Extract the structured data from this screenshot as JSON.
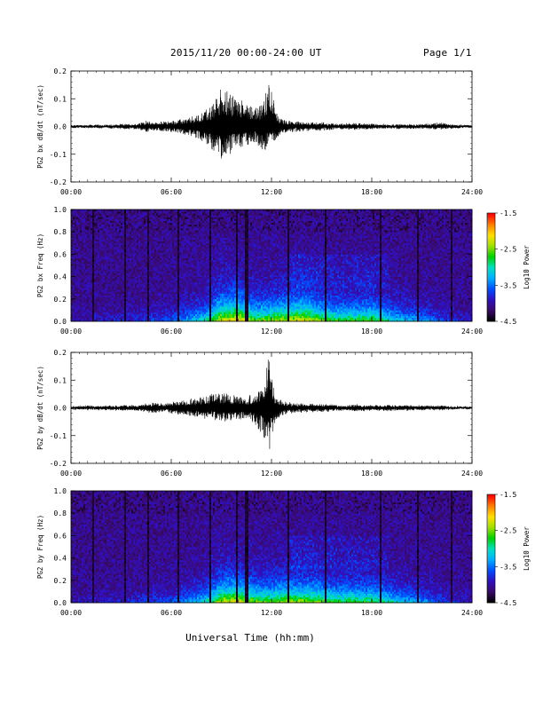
{
  "header": {
    "title": "2015/11/20  00:00-24:00 UT",
    "page": "Page 1/1"
  },
  "xaxis": {
    "ticks": [
      "00:00",
      "06:00",
      "12:00",
      "18:00",
      "24:00"
    ],
    "tick_hours": [
      0,
      6,
      12,
      18,
      24
    ],
    "range_hours": [
      0,
      24
    ],
    "label": "Universal Time (hh:mm)"
  },
  "colorbar": {
    "label": "Log10 Power",
    "ticks": [
      "-1.5",
      "-2.5",
      "-3.5",
      "-4.5"
    ],
    "tick_values": [
      -1.5,
      -2.5,
      -3.5,
      -4.5
    ],
    "range": [
      -4.5,
      -1.5
    ],
    "colors": [
      "#000000",
      "#3a0a6a",
      "#3010c0",
      "#0050ff",
      "#00b0ff",
      "#00e0c0",
      "#00d000",
      "#a0e000",
      "#ffe000",
      "#ff8000",
      "#ff0000"
    ]
  },
  "chart_data": [
    {
      "type": "line",
      "ylabel": "PG2 bx dB/dt (nT/sec)",
      "ylim": [
        -0.2,
        0.2
      ],
      "yticks": [
        "0.2",
        "0.1",
        "0.0",
        "-0.1",
        "-0.2"
      ],
      "ytick_values": [
        0.2,
        0.1,
        0.0,
        -0.1,
        -0.2
      ],
      "xlim": [
        0,
        24
      ],
      "series": [
        {
          "x_hours": [
            0,
            1,
            2,
            3,
            4,
            4.5,
            5,
            6,
            7,
            7.5,
            8,
            8.5,
            9,
            9.5,
            10,
            10.5,
            11,
            11.5,
            11.9,
            12.2,
            12.5,
            13,
            14,
            15,
            16,
            17,
            18,
            19,
            20,
            21,
            22,
            23,
            24
          ],
          "envelope_pos": [
            0.005,
            0.006,
            0.006,
            0.008,
            0.01,
            0.02,
            0.015,
            0.02,
            0.03,
            0.04,
            0.06,
            0.08,
            0.15,
            0.12,
            0.1,
            0.1,
            0.07,
            0.08,
            0.2,
            0.06,
            0.03,
            0.02,
            0.015,
            0.015,
            0.01,
            0.012,
            0.01,
            0.008,
            0.008,
            0.007,
            0.015,
            0.006,
            0.005
          ],
          "envelope_neg": [
            -0.005,
            -0.006,
            -0.006,
            -0.008,
            -0.01,
            -0.02,
            -0.015,
            -0.02,
            -0.03,
            -0.04,
            -0.06,
            -0.09,
            -0.12,
            -0.1,
            -0.08,
            -0.07,
            -0.06,
            -0.1,
            -0.05,
            -0.05,
            -0.03,
            -0.02,
            -0.015,
            -0.015,
            -0.01,
            -0.012,
            -0.01,
            -0.008,
            -0.008,
            -0.007,
            -0.012,
            -0.006,
            -0.005
          ]
        }
      ]
    },
    {
      "type": "heatmap",
      "ylabel": "PG2 bx Freq (Hz)",
      "ylim": [
        0.0,
        1.0
      ],
      "yticks": [
        "1.0",
        "0.8",
        "0.6",
        "0.4",
        "0.2",
        "0.0"
      ],
      "ytick_values": [
        1.0,
        0.8,
        0.6,
        0.4,
        0.2,
        0.0
      ],
      "xlim": [
        0,
        24
      ],
      "zlim": [
        -4.5,
        -1.5
      ],
      "dark_gaps_hours": [
        1.3,
        3.2,
        4.6,
        6.4,
        8.3,
        9.9,
        10.5,
        13.0,
        15.2,
        18.5,
        20.8,
        22.8
      ],
      "activity_hours": [
        0,
        3,
        6,
        8,
        9,
        10,
        11,
        12,
        13,
        14,
        15,
        16,
        17,
        18,
        19,
        20,
        21,
        22,
        24
      ],
      "activity_level": [
        0.05,
        0.1,
        0.2,
        0.45,
        0.75,
        0.8,
        0.6,
        0.65,
        0.7,
        0.75,
        0.6,
        0.55,
        0.55,
        0.6,
        0.45,
        0.35,
        0.3,
        0.2,
        0.05
      ]
    },
    {
      "type": "line",
      "ylabel": "PG2 by dB/dt (nT/sec)",
      "ylim": [
        -0.2,
        0.2
      ],
      "yticks": [
        "0.2",
        "0.1",
        "0.0",
        "-0.1",
        "-0.2"
      ],
      "ytick_values": [
        0.2,
        0.1,
        0.0,
        -0.1,
        -0.2
      ],
      "xlim": [
        0,
        24
      ],
      "series": [
        {
          "x_hours": [
            0,
            1,
            2,
            3,
            4,
            5,
            5.5,
            6,
            7,
            7.5,
            8,
            8.5,
            9,
            9.5,
            10,
            10.5,
            11,
            11.5,
            11.85,
            12.2,
            12.5,
            13,
            14,
            15,
            16,
            17,
            18,
            19,
            20,
            21,
            22,
            23,
            24
          ],
          "envelope_pos": [
            0.006,
            0.008,
            0.008,
            0.01,
            0.01,
            0.02,
            0.015,
            0.02,
            0.03,
            0.035,
            0.04,
            0.05,
            0.055,
            0.05,
            0.04,
            0.04,
            0.05,
            0.07,
            0.2,
            0.05,
            0.03,
            0.02,
            0.015,
            0.015,
            0.01,
            0.012,
            0.01,
            0.01,
            0.01,
            0.008,
            0.008,
            0.006,
            0.005
          ],
          "envelope_neg": [
            -0.006,
            -0.008,
            -0.008,
            -0.01,
            -0.01,
            -0.02,
            -0.015,
            -0.02,
            -0.03,
            -0.035,
            -0.04,
            -0.045,
            -0.05,
            -0.045,
            -0.04,
            -0.04,
            -0.06,
            -0.1,
            -0.16,
            -0.06,
            -0.03,
            -0.02,
            -0.015,
            -0.015,
            -0.01,
            -0.012,
            -0.01,
            -0.01,
            -0.01,
            -0.008,
            -0.008,
            -0.006,
            -0.005
          ]
        }
      ]
    },
    {
      "type": "heatmap",
      "ylabel": "PG2 by Freq (Hz)",
      "ylim": [
        0.0,
        1.0
      ],
      "yticks": [
        "1.0",
        "0.8",
        "0.6",
        "0.4",
        "0.2",
        "0.0"
      ],
      "ytick_values": [
        1.0,
        0.8,
        0.6,
        0.4,
        0.2,
        0.0
      ],
      "xlim": [
        0,
        24
      ],
      "zlim": [
        -4.5,
        -1.5
      ],
      "dark_gaps_hours": [
        1.3,
        3.2,
        4.6,
        6.4,
        8.3,
        9.9,
        10.5,
        13.0,
        15.2,
        18.5,
        20.8,
        22.8
      ],
      "activity_hours": [
        0,
        3,
        6,
        8,
        9,
        10,
        11,
        12,
        13,
        14,
        15,
        16,
        17,
        18,
        19,
        20,
        21,
        22,
        24
      ],
      "activity_level": [
        0.05,
        0.1,
        0.2,
        0.4,
        0.7,
        0.75,
        0.6,
        0.6,
        0.65,
        0.65,
        0.6,
        0.55,
        0.55,
        0.55,
        0.45,
        0.35,
        0.3,
        0.2,
        0.05
      ]
    }
  ]
}
